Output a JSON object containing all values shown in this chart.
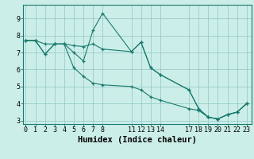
{
  "xlabel": "Humidex (Indice chaleur)",
  "bg_color": "#cceee8",
  "grid_color": "#99cccc",
  "line_color": "#1a7a6e",
  "line1_x": [
    0,
    1,
    2,
    3,
    4,
    5,
    6,
    7,
    8,
    11,
    12,
    13,
    14,
    17,
    18,
    19,
    20,
    21,
    22,
    23
  ],
  "line1_y": [
    7.7,
    7.7,
    7.5,
    7.5,
    7.5,
    7.4,
    7.35,
    7.5,
    7.2,
    7.05,
    7.6,
    6.1,
    5.7,
    4.8,
    3.7,
    3.2,
    3.1,
    3.35,
    3.5,
    4.0
  ],
  "line2_x": [
    0,
    1,
    2,
    3,
    4,
    5,
    6,
    7,
    8,
    11,
    12,
    13,
    14,
    17,
    18,
    19,
    20,
    21,
    22,
    23
  ],
  "line2_y": [
    7.7,
    7.7,
    6.9,
    7.5,
    7.5,
    7.0,
    6.5,
    8.3,
    9.3,
    7.05,
    7.6,
    6.1,
    5.7,
    4.8,
    3.7,
    3.2,
    3.1,
    3.35,
    3.5,
    4.0
  ],
  "line3_x": [
    0,
    1,
    2,
    3,
    4,
    5,
    6,
    7,
    8,
    11,
    12,
    13,
    14,
    17,
    18,
    19,
    20,
    21,
    22,
    23
  ],
  "line3_y": [
    7.7,
    7.7,
    6.9,
    7.5,
    7.5,
    6.1,
    5.6,
    5.2,
    5.1,
    5.0,
    4.8,
    4.4,
    4.2,
    3.7,
    3.6,
    3.2,
    3.1,
    3.35,
    3.5,
    4.0
  ],
  "xlim": [
    -0.3,
    23.5
  ],
  "ylim": [
    2.8,
    9.8
  ],
  "xticks": [
    0,
    1,
    2,
    3,
    4,
    5,
    6,
    7,
    8,
    11,
    12,
    13,
    14,
    17,
    18,
    19,
    20,
    21,
    22,
    23
  ],
  "yticks": [
    3,
    4,
    5,
    6,
    7,
    8,
    9
  ],
  "tick_fontsize": 6,
  "label_fontsize": 7.5
}
